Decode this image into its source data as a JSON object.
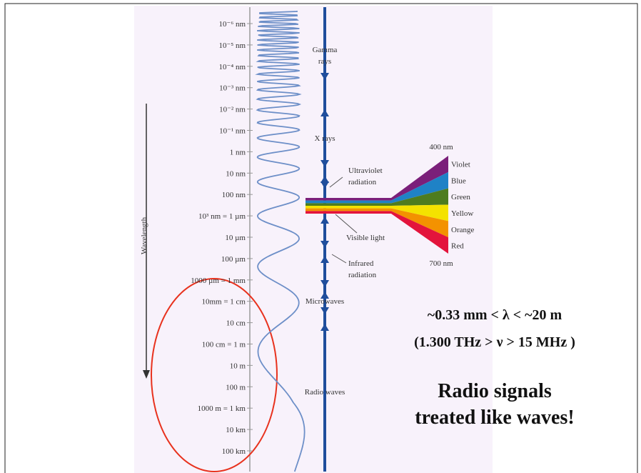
{
  "figure": {
    "wavelength_labels": [
      "10⁻⁶ nm",
      "10⁻⁵ nm",
      "10⁻⁴ nm",
      "10⁻³ nm",
      "10⁻² nm",
      "10⁻¹ nm",
      "1 nm",
      "10 nm",
      "100 nm",
      "10³ nm = 1 µm",
      "10 µm",
      "100 µm",
      "1000 µm = 1 mm",
      "10mm = 1 cm",
      "10 cm",
      "100 cm = 1 m",
      "10 m",
      "100 m",
      "1000 m = 1 km",
      "10 km",
      "100 km"
    ],
    "axis_label": "Wavelength",
    "bands": [
      {
        "lines": [
          "Gamma",
          "rays"
        ]
      },
      {
        "lines": [
          "X rays"
        ]
      },
      {
        "lines": [
          "Ultraviolet",
          "radiation"
        ]
      },
      {
        "lines": [
          "Visible light"
        ]
      },
      {
        "lines": [
          "Infrared",
          "radiation"
        ]
      },
      {
        "lines": [
          "Microwaves"
        ]
      },
      {
        "lines": [
          "Radio waves"
        ]
      }
    ],
    "visible_start": "400 nm",
    "visible_end": "700 nm",
    "colors": [
      "Violet",
      "Blue",
      "Green",
      "Yellow",
      "Orange",
      "Red"
    ]
  },
  "notes": {
    "range": "~0.33 mm < λ < ~20 m",
    "frequency": "(1.300 THz > ν > 15 MHz )",
    "headline": [
      "Radio signals",
      "treated like waves!"
    ]
  }
}
